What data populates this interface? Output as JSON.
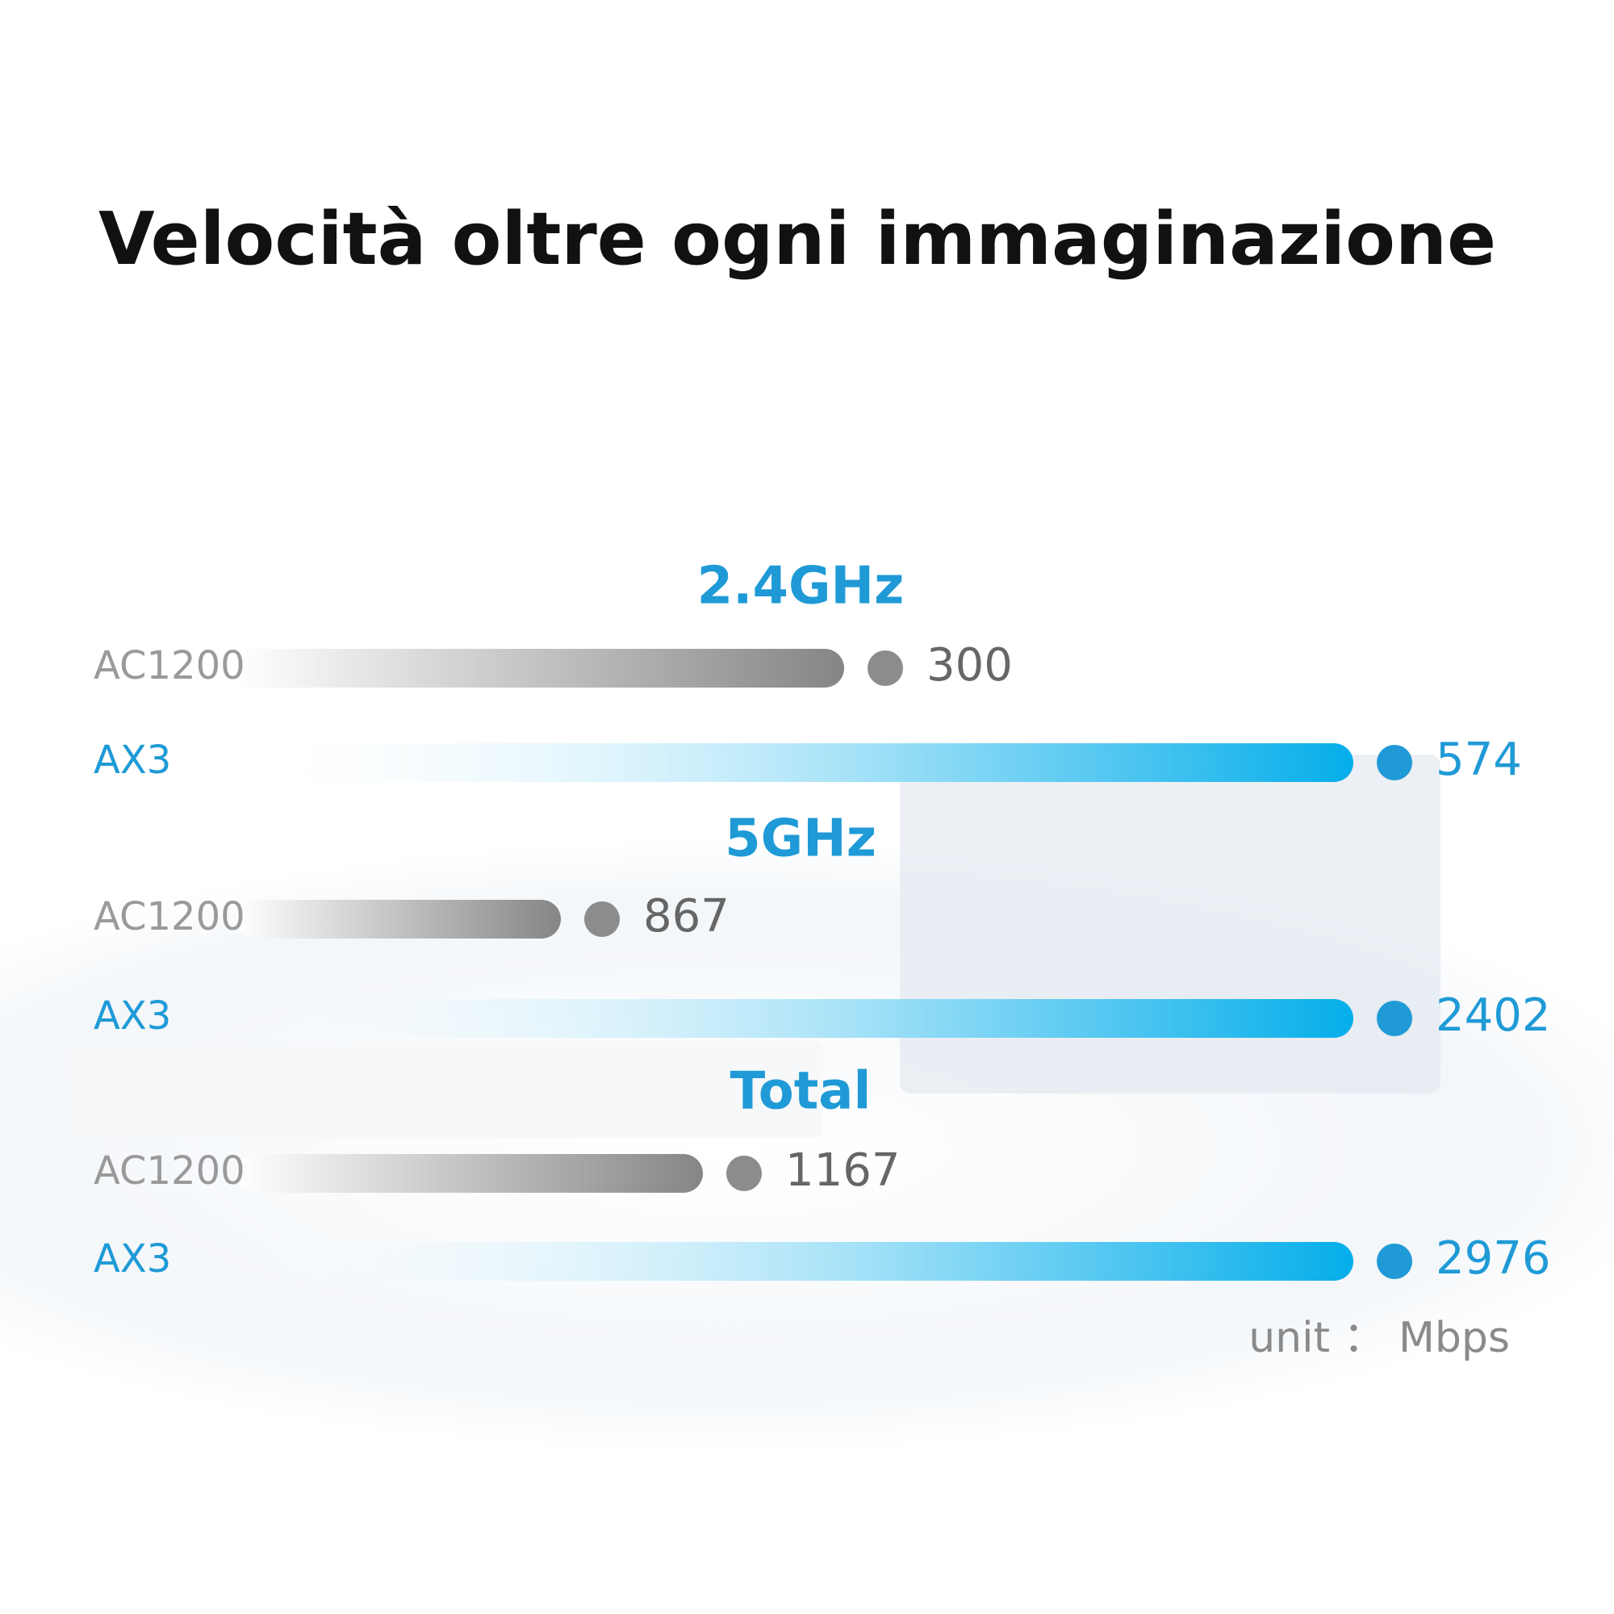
{
  "title": "Velocità oltre ogni immaginazione",
  "sections": [
    {
      "heading": "2.4GHz",
      "rows": [
        {
          "label": "AC1200",
          "value": 300
        },
        {
          "label": "AX3",
          "value": 574
        }
      ]
    },
    {
      "heading": "5GHz",
      "rows": [
        {
          "label": "AC1200",
          "value": 867
        },
        {
          "label": "AX3",
          "value": 2402
        }
      ]
    },
    {
      "heading": "Total",
      "rows": [
        {
          "label": "AC1200",
          "value": 1167
        },
        {
          "label": "AX3",
          "value": 2976
        }
      ]
    }
  ],
  "unit": "unit ： Mbps"
}
